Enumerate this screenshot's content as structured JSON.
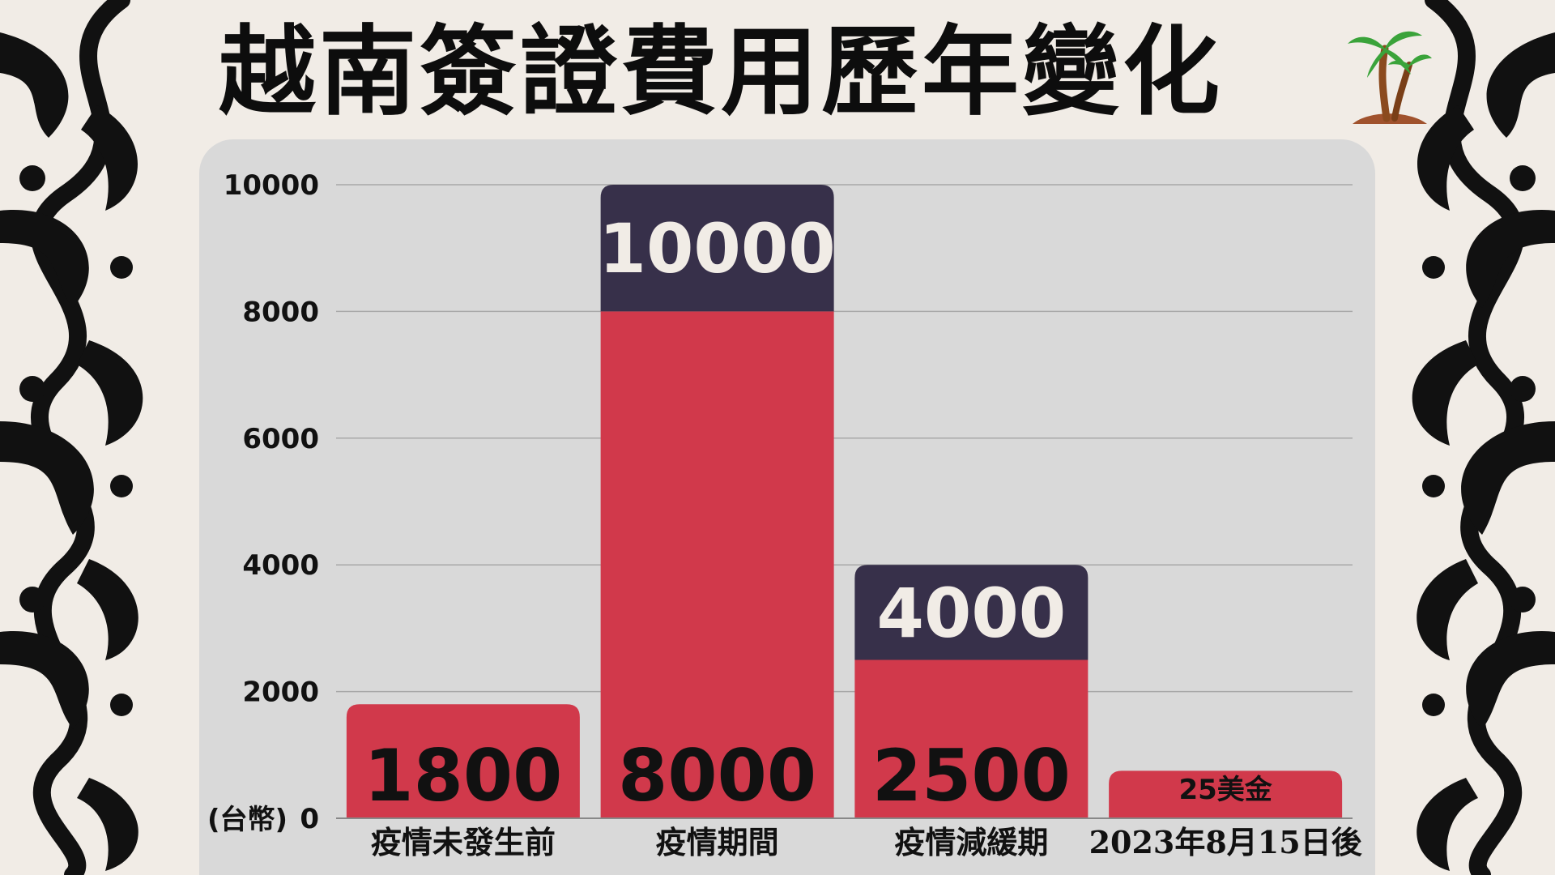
{
  "title": "越南簽證費用歷年變化",
  "icons": {
    "decoration": "palm-tree-icon",
    "frame": "baroque-scroll-ornament"
  },
  "colors": {
    "background": "#f1ece6",
    "panel": "#d9d9d9",
    "bar_red": "#d1394b",
    "bar_navy": "#37304a",
    "text_dark": "#111111",
    "text_light": "#f1ece6"
  },
  "chart_data": {
    "type": "bar",
    "categories": [
      "疫情未發生前",
      "疫情期間",
      "疫情減緩期",
      "2023年8月15日後"
    ],
    "series": [
      {
        "values": [
          1800,
          8000,
          2500,
          750
        ]
      },
      {
        "values": [
          0,
          2000,
          1500,
          0
        ]
      }
    ],
    "data_labels": {
      "base": [
        "1800",
        "8000",
        "2500",
        "25美金"
      ],
      "total": [
        "",
        "10000",
        "4000",
        ""
      ]
    },
    "yticks": [
      0,
      2000,
      4000,
      6000,
      8000,
      10000
    ],
    "ylabel": "(台幣)",
    "ylim": [
      0,
      10000
    ],
    "grid": true,
    "stacked": true
  }
}
